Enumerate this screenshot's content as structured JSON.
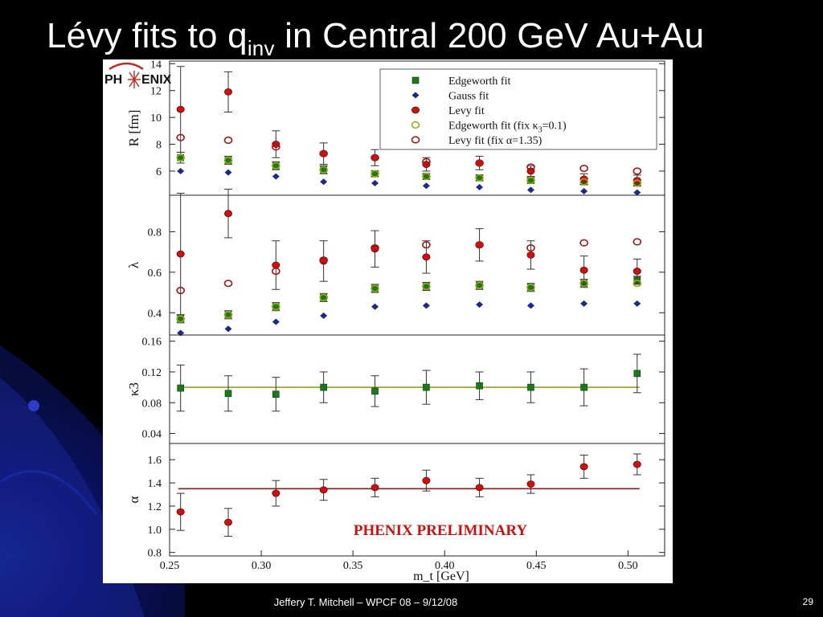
{
  "slide": {
    "title_main": "Lévy fits to q",
    "title_sub": "inv",
    "title_tail": " in Central 200 GeV Au+Au",
    "footer": "Jeffery T. Mitchell – WPCF 08 – 9/12/08",
    "page_number": "29"
  },
  "figure": {
    "preliminary_label": "PHENIX PRELIMINARY",
    "logo_text_left": "PH",
    "logo_text_right": "ENIX",
    "colors": {
      "edgeworth": "#1a7a1a",
      "gauss": "#1a2a8a",
      "levy": "#cc1111",
      "edgeworth_fix": "#9aaa10",
      "levy_fix": "#a01818",
      "ref_line_kappa": "#9aa010",
      "ref_line_alpha": "#8b1a1a",
      "logo_red": "#c0281e"
    }
  },
  "chart_data": {
    "type": "scatter",
    "xlabel": "m_t [GeV]",
    "xlim": [
      0.25,
      0.52
    ],
    "x_ticks": [
      "0.25",
      "0.30",
      "0.35",
      "0.40",
      "0.45",
      "0.50"
    ],
    "x": [
      0.256,
      0.282,
      0.308,
      0.334,
      0.362,
      0.39,
      0.419,
      0.447,
      0.476,
      0.505
    ],
    "legend": {
      "placement": "top-right",
      "entries": [
        "Edgeworth fit",
        "Gauss fit",
        "Levy fit",
        "Edgeworth fit (fix κ",
        "Levy fit (fix α=1.35)"
      ],
      "edgeworth_fix_sub": "3",
      "edgeworth_fix_tail": "=0.1)"
    },
    "panels": [
      {
        "id": "R",
        "ylabel": "R [fm]",
        "ylim": [
          4.2,
          14.2
        ],
        "y_ticks": [
          "6",
          "8",
          "10",
          "12",
          "14"
        ],
        "y_tick_values": [
          6,
          8,
          10,
          12,
          14
        ],
        "series": [
          {
            "name": "Edgeworth fit",
            "marker": "square",
            "y": [
              7.0,
              6.8,
              6.4,
              6.1,
              5.8,
              5.6,
              5.5,
              5.3,
              5.2,
              5.1
            ],
            "err": [
              0.4,
              0.3,
              0.3,
              0.3,
              0.2,
              0.2,
              0.2,
              0.2,
              0.2,
              0.2
            ]
          },
          {
            "name": "Gauss fit",
            "marker": "diamond",
            "y": [
              6.0,
              5.9,
              5.6,
              5.2,
              5.1,
              4.9,
              4.8,
              4.6,
              4.5,
              4.4
            ],
            "err": [
              0,
              0,
              0,
              0,
              0,
              0,
              0,
              0,
              0,
              0
            ]
          },
          {
            "name": "Levy fit",
            "marker": "circle",
            "y": [
              10.6,
              11.9,
              8.0,
              7.3,
              7.0,
              6.5,
              6.6,
              6.0,
              5.4,
              5.3
            ],
            "err": [
              3.2,
              1.5,
              1.0,
              0.8,
              0.6,
              0.5,
              0.5,
              0.4,
              0.4,
              0.4
            ]
          },
          {
            "name": "Edgeworth fit (fix κ3=0.1)",
            "marker": "open-circle",
            "y": [
              7.0,
              6.8,
              6.4,
              6.1,
              5.8,
              5.6,
              5.5,
              5.3,
              5.2,
              5.1
            ],
            "err": [
              0,
              0,
              0,
              0,
              0,
              0,
              0,
              0,
              0,
              0
            ]
          },
          {
            "name": "Levy fit (fix α=1.35)",
            "marker": "open-circle",
            "y": [
              8.5,
              8.3,
              7.8,
              7.3,
              7.0,
              6.7,
              6.6,
              6.3,
              6.2,
              6.0
            ],
            "err": [
              0,
              0,
              0,
              0,
              0,
              0,
              0,
              0,
              0,
              0
            ]
          }
        ]
      },
      {
        "id": "lambda",
        "ylabel": "λ",
        "ylim": [
          0.29,
          0.98
        ],
        "y_ticks": [
          "0.4",
          "0.6",
          "0.8"
        ],
        "y_tick_values": [
          0.4,
          0.6,
          0.8
        ],
        "series": [
          {
            "name": "Edgeworth fit",
            "marker": "square",
            "y": [
              0.37,
              0.39,
              0.43,
              0.475,
              0.52,
              0.53,
              0.535,
              0.525,
              0.545,
              0.56
            ],
            "err": [
              0.02,
              0.02,
              0.02,
              0.02,
              0.02,
              0.02,
              0.02,
              0.02,
              0.02,
              0.02
            ]
          },
          {
            "name": "Gauss fit",
            "marker": "diamond",
            "y": [
              0.3,
              0.32,
              0.355,
              0.385,
              0.43,
              0.435,
              0.44,
              0.435,
              0.445,
              0.445
            ],
            "err": [
              0,
              0,
              0,
              0,
              0,
              0,
              0,
              0,
              0,
              0
            ]
          },
          {
            "name": "Levy fit",
            "marker": "circle",
            "y": [
              0.69,
              0.89,
              0.635,
              0.655,
              0.715,
              0.675,
              0.735,
              0.685,
              0.61,
              0.605
            ],
            "err": [
              0.3,
              0.12,
              0.12,
              0.1,
              0.09,
              0.08,
              0.08,
              0.07,
              0.07,
              0.06
            ]
          },
          {
            "name": "Edgeworth fit (fix κ3=0.1)",
            "marker": "open-circle",
            "y": [
              0.37,
              0.39,
              0.43,
              0.475,
              0.52,
              0.53,
              0.535,
              0.525,
              0.545,
              0.545
            ],
            "err": [
              0,
              0,
              0,
              0,
              0,
              0,
              0,
              0,
              0,
              0
            ]
          },
          {
            "name": "Levy fit (fix α=1.35)",
            "marker": "open-circle",
            "y": [
              0.51,
              0.545,
              0.605,
              0.66,
              0.72,
              0.735,
              0.735,
              0.72,
              0.745,
              0.75
            ],
            "err": [
              0,
              0,
              0,
              0,
              0,
              0,
              0,
              0,
              0,
              0
            ]
          }
        ]
      },
      {
        "id": "kappa3",
        "ylabel": "κ3",
        "ylim": [
          0.027,
          0.168
        ],
        "y_ticks": [
          "0.04",
          "0.08",
          "0.12",
          "0.16"
        ],
        "y_tick_values": [
          0.04,
          0.08,
          0.12,
          0.16
        ],
        "ref_line": 0.1,
        "series": [
          {
            "name": "Edgeworth fit",
            "marker": "square",
            "y": [
              0.099,
              0.092,
              0.091,
              0.1,
              0.095,
              0.1,
              0.102,
              0.1,
              0.1,
              0.118
            ],
            "err": [
              0.03,
              0.023,
              0.022,
              0.02,
              0.02,
              0.022,
              0.018,
              0.02,
              0.024,
              0.025
            ]
          }
        ]
      },
      {
        "id": "alpha",
        "ylabel": "α",
        "ylim": [
          0.77,
          1.74
        ],
        "y_ticks": [
          "0.8",
          "1.0",
          "1.2",
          "1.4",
          "1.6"
        ],
        "y_tick_values": [
          0.8,
          1.0,
          1.2,
          1.4,
          1.6
        ],
        "ref_line": 1.35,
        "series": [
          {
            "name": "Levy fit",
            "marker": "circle",
            "y": [
              1.15,
              1.06,
              1.31,
              1.34,
              1.36,
              1.42,
              1.36,
              1.39,
              1.54,
              1.56
            ],
            "err": [
              0.16,
              0.12,
              0.11,
              0.09,
              0.08,
              0.09,
              0.08,
              0.08,
              0.1,
              0.09
            ]
          }
        ]
      }
    ]
  }
}
